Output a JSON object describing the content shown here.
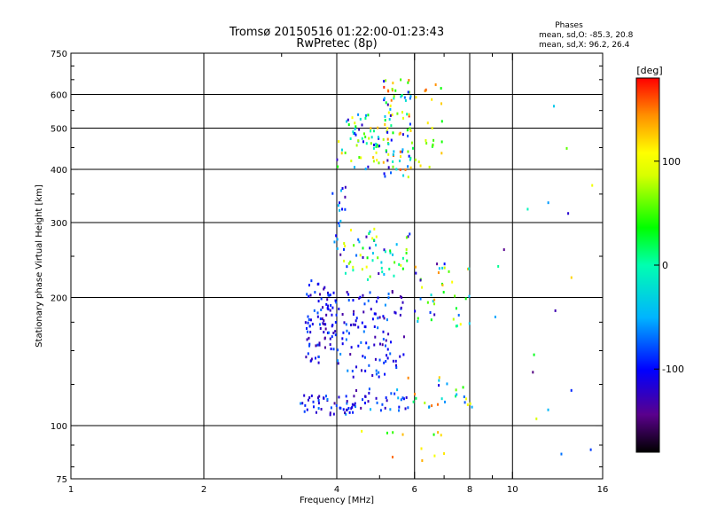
{
  "chart_data": {
    "type": "scatter",
    "title": "Tromsø 20150516 01:22:00-01:23:43",
    "subtitle": "RwPretec (8p)",
    "info_title": "Phases",
    "info_lines": [
      "mean, sd,O: -85.3, 20.8",
      "mean, sd,X:  96.2, 26.4"
    ],
    "xlabel": "Frequency [MHz]",
    "ylabel": "Stationary phase Virtual Height [km]",
    "x_scale": "log",
    "y_scale": "log",
    "xlim": [
      1,
      16
    ],
    "ylim": [
      75,
      750
    ],
    "x_major_ticks": [
      1,
      2,
      4,
      6,
      8,
      10,
      16
    ],
    "x_minor_ticks": [
      3,
      5,
      7,
      9
    ],
    "y_major_ticks": [
      75,
      100,
      200,
      300,
      400,
      500,
      600,
      750
    ],
    "y_minor_ticks": [
      80,
      90,
      125,
      150,
      175,
      250,
      350,
      450,
      550,
      650,
      700
    ],
    "grid_x": [
      2,
      4,
      6,
      8,
      10
    ],
    "grid_y": [
      100,
      200,
      300,
      400,
      500,
      600
    ],
    "colorbar": {
      "label": "[deg]",
      "range": [
        -180,
        180
      ],
      "ticks": [
        100,
        0,
        -100
      ],
      "colormap": "rainbow"
    },
    "clusters": [
      {
        "x": [
          3.4,
          4.0
        ],
        "y": [
          140,
          220
        ],
        "phase": [
          -140,
          -70
        ],
        "n": 90
      },
      {
        "x": [
          4.0,
          5.7
        ],
        "y": [
          130,
          210
        ],
        "phase": [
          -140,
          -60
        ],
        "n": 110
      },
      {
        "x": [
          3.3,
          4.4
        ],
        "y": [
          106,
          118
        ],
        "phase": [
          -140,
          -60
        ],
        "n": 45
      },
      {
        "x": [
          4.2,
          5.8
        ],
        "y": [
          108,
          122
        ],
        "phase": [
          -140,
          -40
        ],
        "n": 35
      },
      {
        "x": [
          4.0,
          5.9
        ],
        "y": [
          220,
          290
        ],
        "phase": [
          -140,
          120
        ],
        "n": 60
      },
      {
        "x": [
          4.0,
          5.0
        ],
        "y": [
          400,
          540
        ],
        "phase": [
          -140,
          130
        ],
        "n": 60
      },
      {
        "x": [
          5.1,
          5.9
        ],
        "y": [
          380,
          650
        ],
        "phase": [
          -140,
          170
        ],
        "n": 90
      },
      {
        "x": [
          5.9,
          7.0
        ],
        "y": [
          400,
          650
        ],
        "phase": [
          20,
          170
        ],
        "n": 25
      },
      {
        "x": [
          6.0,
          8.0
        ],
        "y": [
          170,
          240
        ],
        "phase": [
          -140,
          160
        ],
        "n": 40
      },
      {
        "x": [
          5.8,
          8.2
        ],
        "y": [
          110,
          130
        ],
        "phase": [
          -140,
          160
        ],
        "n": 25
      },
      {
        "x": [
          3.9,
          4.2
        ],
        "y": [
          250,
          390
        ],
        "phase": [
          -140,
          -40
        ],
        "n": 18
      },
      {
        "x": [
          4.5,
          7.0
        ],
        "y": [
          82,
          98
        ],
        "phase": [
          40,
          160
        ],
        "n": 12
      },
      {
        "x": [
          9.0,
          15.5
        ],
        "y": [
          85,
          620
        ],
        "phase": [
          -160,
          170
        ],
        "n": 18
      }
    ]
  }
}
